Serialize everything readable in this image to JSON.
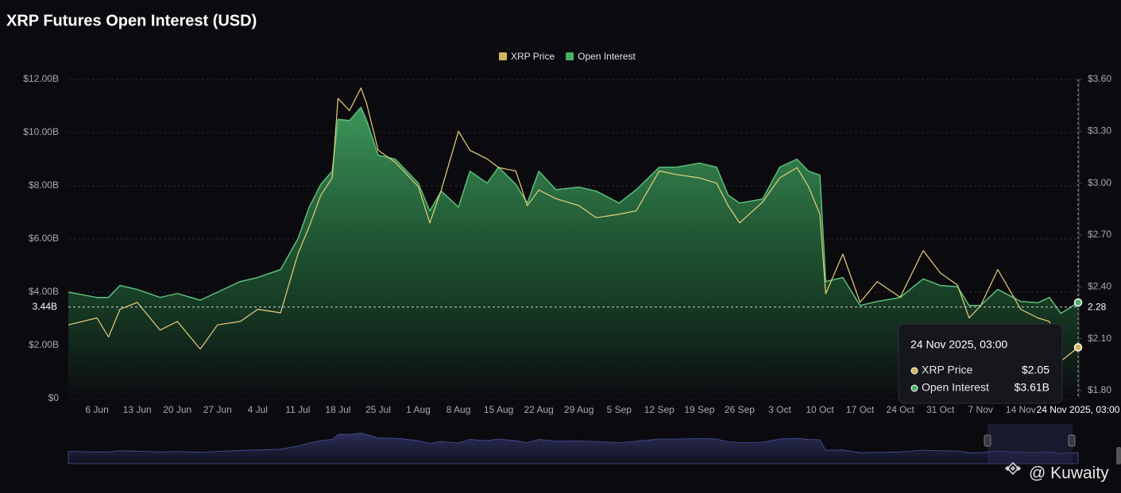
{
  "title": "XRP Futures Open Interest (USD)",
  "watermark": "@ Kuwaity",
  "chart_data": {
    "type": "area-line",
    "x": [
      "1 Jun",
      "6 Jun",
      "8 Jun",
      "10 Jun",
      "13 Jun",
      "17 Jun",
      "20 Jun",
      "24 Jun",
      "27 Jun",
      "1 Jul",
      "4 Jul",
      "8 Jul",
      "11 Jul",
      "13 Jul",
      "15 Jul",
      "17 Jul",
      "18 Jul",
      "20 Jul",
      "22 Jul",
      "23 Jul",
      "25 Jul",
      "28 Jul",
      "1 Aug",
      "3 Aug",
      "5 Aug",
      "8 Aug",
      "10 Aug",
      "13 Aug",
      "15 Aug",
      "18 Aug",
      "20 Aug",
      "22 Aug",
      "25 Aug",
      "29 Aug",
      "1 Sep",
      "5 Sep",
      "8 Sep",
      "12 Sep",
      "15 Sep",
      "19 Sep",
      "22 Sep",
      "24 Sep",
      "26 Sep",
      "30 Sep",
      "3 Oct",
      "6 Oct",
      "8 Oct",
      "10 Oct",
      "11 Oct",
      "14 Oct",
      "17 Oct",
      "20 Oct",
      "24 Oct",
      "28 Oct",
      "31 Oct",
      "3 Nov",
      "5 Nov",
      "7 Nov",
      "10 Nov",
      "14 Nov",
      "17 Nov",
      "19 Nov",
      "21 Nov",
      "24 Nov"
    ],
    "series": [
      {
        "name": "XRP Price",
        "color": "#e8cf7a",
        "legend_color": "#d4b45a",
        "axis": "y2",
        "type": "line",
        "values": [
          2.18,
          2.22,
          2.11,
          2.27,
          2.31,
          2.15,
          2.2,
          2.04,
          2.18,
          2.2,
          2.27,
          2.25,
          2.59,
          2.75,
          2.93,
          3.03,
          3.49,
          3.42,
          3.55,
          3.46,
          3.19,
          3.12,
          2.98,
          2.77,
          2.96,
          3.3,
          3.19,
          3.14,
          3.09,
          3.07,
          2.87,
          2.96,
          2.91,
          2.87,
          2.8,
          2.82,
          2.84,
          3.07,
          3.05,
          3.03,
          3.0,
          2.87,
          2.77,
          2.89,
          3.03,
          3.09,
          2.98,
          2.82,
          2.36,
          2.59,
          2.31,
          2.43,
          2.34,
          2.61,
          2.48,
          2.41,
          2.22,
          2.29,
          2.5,
          2.27,
          2.22,
          2.2,
          1.97,
          2.05
        ]
      },
      {
        "name": "Open Interest",
        "color": "#5bbf7a",
        "legend_color": "#4caf6e",
        "axis": "y",
        "type": "area",
        "values": [
          4.0,
          3.8,
          3.8,
          4.25,
          4.1,
          3.8,
          3.95,
          3.7,
          4.0,
          4.4,
          4.55,
          4.85,
          6.0,
          7.2,
          8.05,
          8.55,
          10.5,
          10.45,
          10.95,
          10.45,
          9.15,
          9.0,
          8.1,
          7.05,
          7.8,
          7.2,
          8.55,
          8.1,
          8.7,
          8.05,
          7.35,
          8.55,
          7.85,
          7.95,
          7.8,
          7.35,
          7.85,
          8.7,
          8.7,
          8.85,
          8.7,
          7.65,
          7.35,
          7.5,
          8.7,
          9.0,
          8.55,
          8.4,
          4.4,
          4.55,
          3.5,
          3.65,
          3.8,
          4.5,
          4.25,
          4.2,
          3.5,
          3.5,
          4.1,
          3.65,
          3.6,
          3.8,
          3.2,
          3.61
        ]
      }
    ],
    "xticks": [
      "6 Jun",
      "13 Jun",
      "20 Jun",
      "27 Jun",
      "4 Jul",
      "11 Jul",
      "18 Jul",
      "25 Jul",
      "1 Aug",
      "8 Aug",
      "15 Aug",
      "22 Aug",
      "29 Aug",
      "5 Sep",
      "12 Sep",
      "19 Sep",
      "26 Sep",
      "3 Oct",
      "10 Oct",
      "17 Oct",
      "24 Oct",
      "31 Oct",
      "7 Nov",
      "14 Nov"
    ],
    "ylim": [
      0,
      12
    ],
    "yticks": [
      {
        "value": 0,
        "label": "$0"
      },
      {
        "value": 2,
        "label": "$2.00B"
      },
      {
        "value": 4,
        "label": "$4.00B"
      },
      {
        "value": 6,
        "label": "$6.00B"
      },
      {
        "value": 8,
        "label": "$8.00B"
      },
      {
        "value": 10,
        "label": "$10.00B"
      },
      {
        "value": 12,
        "label": "$12.00B"
      }
    ],
    "y2lim": [
      1.8,
      3.6
    ],
    "y2ticks": [
      {
        "value": 1.8,
        "label": "$1.80"
      },
      {
        "value": 2.1,
        "label": "$2.10"
      },
      {
        "value": 2.4,
        "label": "$2.40"
      },
      {
        "value": 2.7,
        "label": "$2.70"
      },
      {
        "value": 3.0,
        "label": "$3.00"
      },
      {
        "value": 3.3,
        "label": "$3.30"
      },
      {
        "value": 3.6,
        "label": "$3.60"
      }
    ],
    "grid": true,
    "legend": "top",
    "crosshair": {
      "y": {
        "value": 3.44,
        "label": "3.44B"
      },
      "y2": {
        "value": 2.28,
        "label": "2.28"
      }
    },
    "tooltip": {
      "title": "24 Nov 2025, 03:00",
      "rows": [
        {
          "name": "XRP Price",
          "value": "$2.05"
        },
        {
          "name": "Open Interest",
          "value": "$3.61B"
        }
      ]
    }
  }
}
